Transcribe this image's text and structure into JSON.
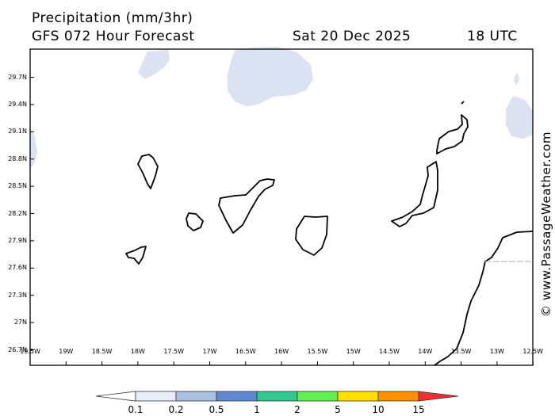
{
  "header": {
    "title": "Precipitation (mm/3hr)",
    "subtitle": "GFS 072 Hour Forecast",
    "date": "Sat 20 Dec 2025",
    "time": "18 UTC"
  },
  "map": {
    "lat_labels": [
      "29.7N",
      "29.4N",
      "29.1N",
      "28.8N",
      "28.5N",
      "28.2N",
      "27.9N",
      "27.6N",
      "27.3N",
      "27N",
      "26.7N"
    ],
    "lon_labels": [
      "19.5W",
      "19W",
      "18.5W",
      "18W",
      "17.5W",
      "17W",
      "16.5W",
      "16W",
      "15.5W",
      "15W",
      "14.5W",
      "14W",
      "13.5W",
      "13W",
      "12.5W"
    ],
    "precip_color": "#dbe3f2",
    "land_outline_color": "#000000"
  },
  "credit": "© www.PassageWeather.com",
  "colorbar": {
    "labels": [
      "0.1",
      "0.2",
      "0.5",
      "1",
      "2",
      "5",
      "10",
      "15"
    ],
    "colors": [
      "#ffffff",
      "#e8eef8",
      "#a9c0e0",
      "#6088d0",
      "#30c890",
      "#60f050",
      "#ffe000",
      "#ff9000",
      "#f03030"
    ]
  },
  "icons": {
    "copyright": "copyright-icon"
  }
}
